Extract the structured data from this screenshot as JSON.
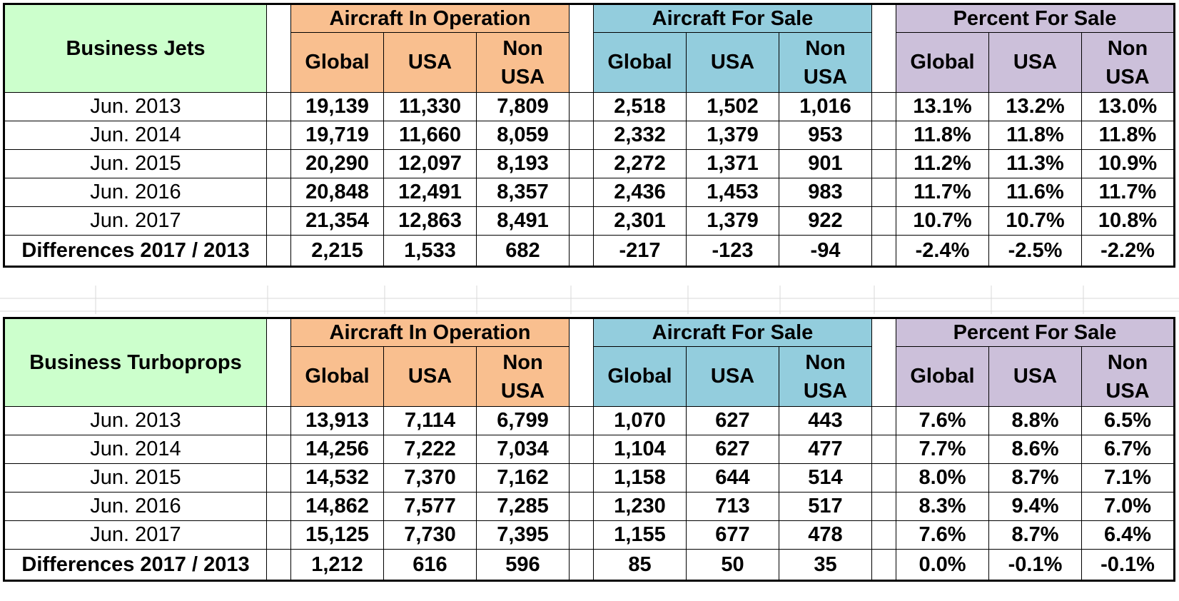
{
  "group_headers": {
    "operation": "Aircraft In Operation",
    "for_sale": "Aircraft For Sale",
    "percent": "Percent For Sale"
  },
  "sub_headers": {
    "global": "Global",
    "usa": "USA",
    "non_usa_1": "Non",
    "non_usa_2": "USA"
  },
  "colors": {
    "title_bg": "#ccffcc",
    "operation_bg": "#f9bf8f",
    "for_sale_bg": "#93cddd",
    "percent_bg": "#ccc0da",
    "negative": "#ff0000"
  },
  "tables": [
    {
      "title": "Business Jets",
      "rows": [
        {
          "label": "Jun. 2013",
          "op": [
            "19,139",
            "11,330",
            "7,809"
          ],
          "fs": [
            "2,518",
            "1,502",
            "1,016"
          ],
          "pc": [
            "13.1%",
            "13.2%",
            "13.0%"
          ]
        },
        {
          "label": "Jun. 2014",
          "op": [
            "19,719",
            "11,660",
            "8,059"
          ],
          "fs": [
            "2,332",
            "1,379",
            "953"
          ],
          "pc": [
            "11.8%",
            "11.8%",
            "11.8%"
          ]
        },
        {
          "label": "Jun. 2015",
          "op": [
            "20,290",
            "12,097",
            "8,193"
          ],
          "fs": [
            "2,272",
            "1,371",
            "901"
          ],
          "pc": [
            "11.2%",
            "11.3%",
            "10.9%"
          ]
        },
        {
          "label": "Jun. 2016",
          "op": [
            "20,848",
            "12,491",
            "8,357"
          ],
          "fs": [
            "2,436",
            "1,453",
            "983"
          ],
          "pc": [
            "11.7%",
            "11.6%",
            "11.7%"
          ]
        },
        {
          "label": "Jun. 2017",
          "op": [
            "21,354",
            "12,863",
            "8,491"
          ],
          "fs": [
            "2,301",
            "1,379",
            "922"
          ],
          "pc": [
            "10.7%",
            "10.7%",
            "10.8%"
          ]
        }
      ],
      "diff": {
        "label": "Differences 2017 / 2013",
        "op": [
          "2,215",
          "1,533",
          "682"
        ],
        "fs": [
          "-217",
          "-123",
          "-94"
        ],
        "pc": [
          "-2.4%",
          "-2.5%",
          "-2.2%"
        ]
      }
    },
    {
      "title": "Business Turboprops",
      "rows": [
        {
          "label": "Jun. 2013",
          "op": [
            "13,913",
            "7,114",
            "6,799"
          ],
          "fs": [
            "1,070",
            "627",
            "443"
          ],
          "pc": [
            "7.6%",
            "8.8%",
            "6.5%"
          ]
        },
        {
          "label": "Jun. 2014",
          "op": [
            "14,256",
            "7,222",
            "7,034"
          ],
          "fs": [
            "1,104",
            "627",
            "477"
          ],
          "pc": [
            "7.7%",
            "8.6%",
            "6.7%"
          ]
        },
        {
          "label": "Jun. 2015",
          "op": [
            "14,532",
            "7,370",
            "7,162"
          ],
          "fs": [
            "1,158",
            "644",
            "514"
          ],
          "pc": [
            "8.0%",
            "8.7%",
            "7.1%"
          ]
        },
        {
          "label": "Jun. 2016",
          "op": [
            "14,862",
            "7,577",
            "7,285"
          ],
          "fs": [
            "1,230",
            "713",
            "517"
          ],
          "pc": [
            "8.3%",
            "9.4%",
            "7.0%"
          ]
        },
        {
          "label": "Jun. 2017",
          "op": [
            "15,125",
            "7,730",
            "7,395"
          ],
          "fs": [
            "1,155",
            "677",
            "478"
          ],
          "pc": [
            "7.6%",
            "8.7%",
            "6.4%"
          ]
        }
      ],
      "diff": {
        "label": "Differences 2017 / 2013",
        "op": [
          "1,212",
          "616",
          "596"
        ],
        "fs": [
          "85",
          "50",
          "35"
        ],
        "pc": [
          "0.0%",
          "-0.1%",
          "-0.1%"
        ]
      }
    }
  ]
}
